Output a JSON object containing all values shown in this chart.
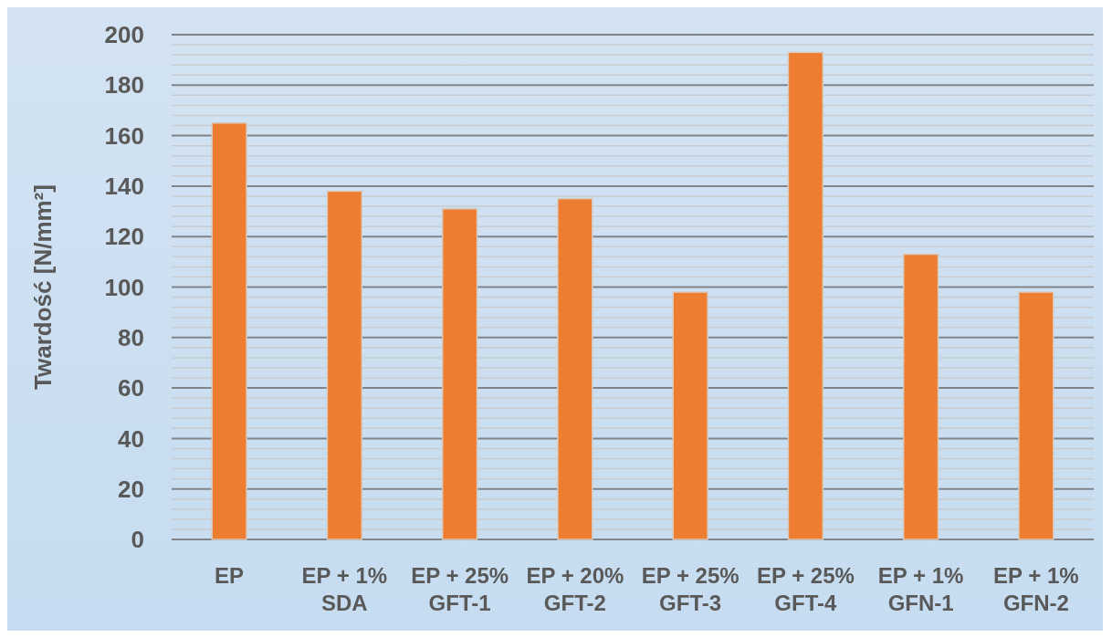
{
  "chart_data": {
    "type": "bar",
    "ylabel": "Twardość [N/mm²]",
    "categories": [
      "EP",
      "EP + 1% SDA",
      "EP + 25% GFT-1",
      "EP + 20% GFT-2",
      "EP + 25% GFT-3",
      "EP + 25% GFT-4",
      "EP + 1% GFN-1",
      "EP + 1% GFN-2"
    ],
    "values": [
      165,
      138,
      131,
      135,
      98,
      193,
      113,
      98
    ],
    "color": "#ed7d31",
    "ylim": [
      0,
      200
    ],
    "yticks": [
      0,
      {
        "value": 4,
        "label": null
      },
      {
        "value": 8,
        "label": null
      },
      {
        "value": 12,
        "label": null
      },
      {
        "value": 16,
        "label": null
      },
      20,
      {
        "value": 24,
        "label": null
      },
      {
        "value": 28,
        "label": null
      },
      {
        "value": 32,
        "label": null
      },
      {
        "value": 36,
        "label": null
      },
      40,
      {
        "value": 44,
        "label": null
      },
      {
        "value": 48,
        "label": null
      },
      {
        "value": 52,
        "label": null
      },
      {
        "value": 56,
        "label": null
      },
      60,
      {
        "value": 64,
        "label": null
      },
      {
        "value": 68,
        "label": null
      },
      {
        "value": 72,
        "label": null
      },
      {
        "value": 76,
        "label": null
      },
      80,
      {
        "value": 84,
        "label": null
      },
      {
        "value": 88,
        "label": null
      },
      {
        "value": 92,
        "label": null
      },
      {
        "value": 96,
        "label": null
      },
      100,
      {
        "value": 104,
        "label": null
      },
      {
        "value": 108,
        "label": null
      },
      {
        "value": 112,
        "label": null
      },
      {
        "value": 116,
        "label": null
      },
      120,
      {
        "value": 124,
        "label": null
      },
      {
        "value": 128,
        "label": null
      },
      {
        "value": 132,
        "label": null
      },
      {
        "value": 136,
        "label": null
      },
      140,
      {
        "value": 144,
        "label": null
      },
      {
        "value": 148,
        "label": null
      },
      {
        "value": 152,
        "label": null
      },
      {
        "value": 156,
        "label": null
      },
      160,
      {
        "value": 164,
        "label": null
      },
      {
        "value": 168,
        "label": null
      },
      {
        "value": 172,
        "label": null
      },
      {
        "value": 176,
        "label": null
      },
      180,
      {
        "value": 184,
        "label": null
      },
      {
        "value": 188,
        "label": null
      },
      {
        "value": 192,
        "label": null
      },
      {
        "value": 196,
        "label": null
      },
      200
    ],
    "grid": "y"
  }
}
